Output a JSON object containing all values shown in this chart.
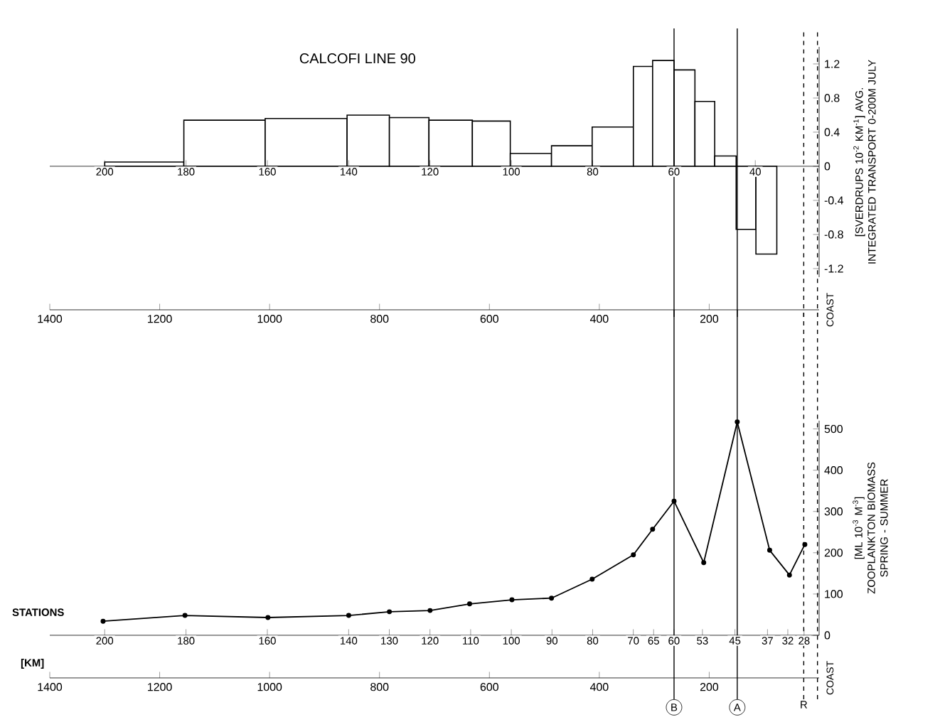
{
  "chart_data": [
    {
      "type": "histogram",
      "title": "CALCOFI LINE 90",
      "ylabel": "[SVERDRUPS 10$^{-2}$ KM$^{-1}$] AVG. INTEGRATED TRANSPORT 0-200M JULY",
      "bins": [
        1300,
        1156,
        1008,
        859,
        782,
        710,
        631,
        562,
        487,
        413,
        338,
        303,
        264,
        226,
        190,
        151,
        115,
        77
      ],
      "values": [
        0.05,
        0.54,
        0.56,
        0.6,
        0.57,
        0.54,
        0.53,
        0.15,
        0.24,
        0.46,
        1.17,
        1.24,
        1.13,
        0.76,
        0.12,
        -0.74,
        -1.03
      ],
      "xlim": [
        1400,
        0
      ],
      "xticks": [
        1400,
        1200,
        1000,
        800,
        600,
        400,
        200
      ],
      "x2lim": [
        213.5,
        24.3
      ],
      "x2ticks": [
        200,
        180,
        160,
        140,
        120,
        100,
        80,
        60,
        40
      ],
      "ylim": [
        -1.3,
        1.4
      ],
      "yticks": [
        -1.2,
        -0.8,
        -0.4,
        0,
        0.4,
        0.8,
        1.2
      ],
      "annotations": [
        "COAST"
      ],
      "ref_lines": [
        {
          "axis": "x",
          "value": 264
        },
        {
          "axis": "x",
          "value": 149
        },
        {
          "axis": "x",
          "value": 28,
          "line_style": "dashed"
        },
        {
          "axis": "x",
          "value": 3,
          "line_style": "dashed"
        }
      ]
    },
    {
      "type": "line",
      "ylabel": "[ML 10$^{-3}$ M$^{-3}$] ZOOPLANKTON BIOMASS SPRING - SUMMER",
      "xlabel": "[KM]",
      "x2label": "STATIONS",
      "x": [
        1303,
        1154,
        1003,
        856,
        782,
        708,
        636,
        559,
        487,
        413,
        338,
        303,
        264,
        210,
        149,
        90,
        54,
        26
      ],
      "values": [
        34,
        48,
        43,
        48,
        57,
        60,
        76,
        86,
        90,
        136,
        195,
        257,
        325,
        176,
        517,
        206,
        146,
        220
      ],
      "color": "#000000",
      "marker": "circle",
      "xlim": [
        1400,
        0
      ],
      "xticks": [
        1400,
        1200,
        1000,
        800,
        600,
        400,
        200
      ],
      "x2lim": [
        213.5,
        24.3
      ],
      "x2ticks": [
        200,
        180,
        160,
        140,
        130,
        120,
        110,
        100,
        90,
        80,
        70,
        65,
        60,
        53,
        45,
        37,
        32,
        28
      ],
      "ylim": [
        0,
        520
      ],
      "yticks": [
        0,
        100,
        200,
        300,
        400,
        500
      ],
      "annotations": [
        "COAST"
      ],
      "ref_lines": [
        {
          "axis": "x",
          "value": 264,
          "label": "B"
        },
        {
          "axis": "x",
          "value": 149,
          "label": "A"
        },
        {
          "axis": "x",
          "value": 28,
          "line_style": "dashed",
          "label": "R"
        },
        {
          "axis": "x",
          "value": 3,
          "line_style": "dashed"
        }
      ]
    }
  ]
}
